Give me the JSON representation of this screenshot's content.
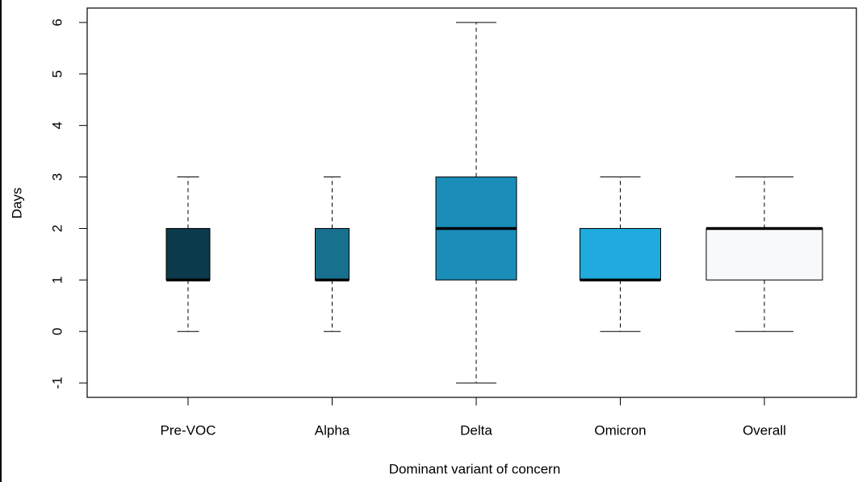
{
  "chart_data": {
    "type": "box",
    "x_label": "Dominant variant of concern",
    "y_label": "Days",
    "categories": [
      "Pre-VOC",
      "Alpha",
      "Delta",
      "Omicron",
      "Overall"
    ],
    "boxes": [
      {
        "whisker_low": 0,
        "q1": 1,
        "median": 1,
        "q3": 2,
        "whisker_high": 3,
        "color": "#0b3a4a"
      },
      {
        "whisker_low": 0,
        "q1": 1,
        "median": 1,
        "q3": 2,
        "whisker_high": 3,
        "color": "#18708f"
      },
      {
        "whisker_low": -1,
        "q1": 1,
        "median": 2,
        "q3": 3,
        "whisker_high": 6,
        "color": "#1a8db8"
      },
      {
        "whisker_low": 0,
        "q1": 1,
        "median": 1,
        "q3": 2,
        "whisker_high": 3,
        "color": "#21aadd"
      },
      {
        "whisker_low": 0,
        "q1": 1,
        "median": 2,
        "q3": 2,
        "whisker_high": 3,
        "color": "#f8f9fb"
      }
    ],
    "ylim": [
      -1.28,
      6.28
    ],
    "yticks": [
      -1,
      0,
      1,
      2,
      3,
      4,
      5,
      6
    ]
  }
}
